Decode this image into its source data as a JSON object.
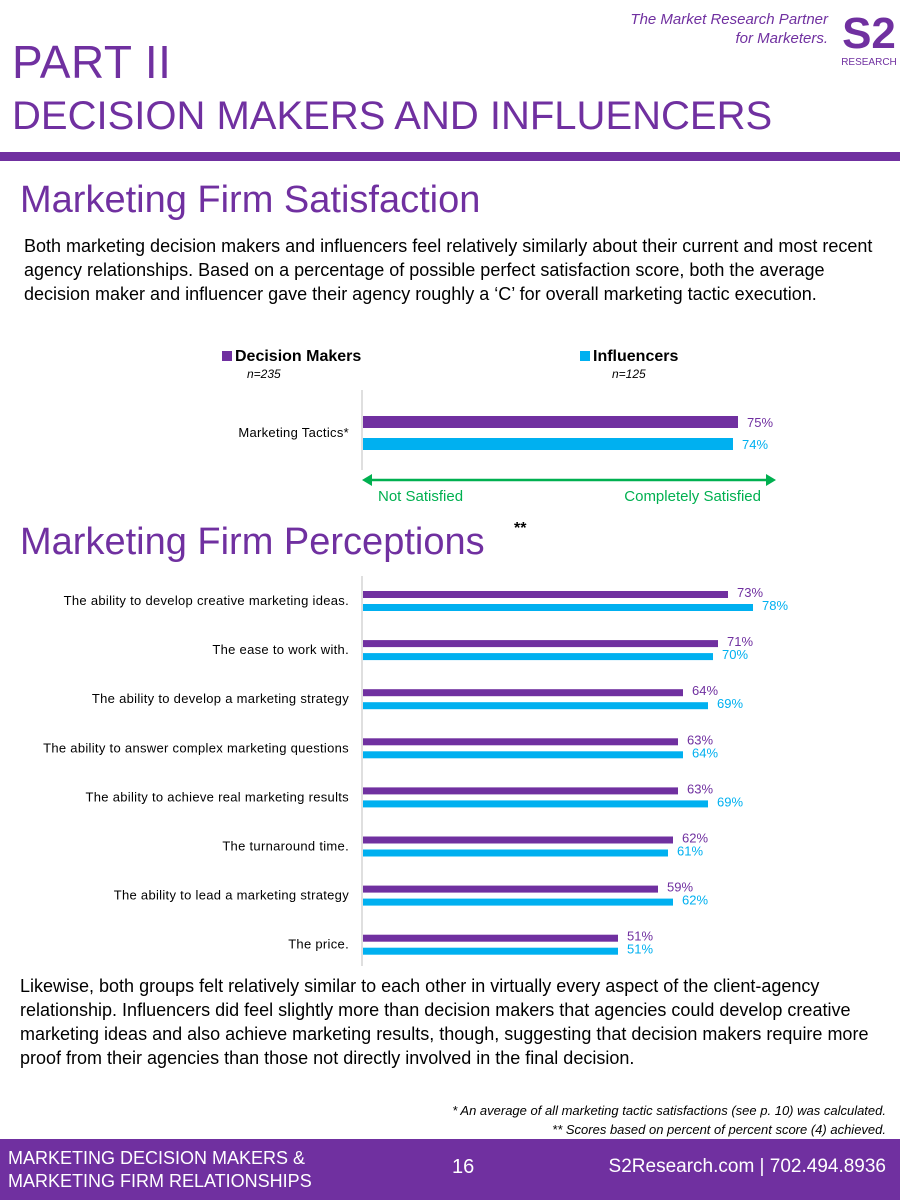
{
  "header": {
    "tagline_line1": "The Market Research Partner",
    "tagline_line2": "for Marketers.",
    "logo_text": "S2",
    "logo_sub": "RESEARCH",
    "part_title": "PART II",
    "part_subtitle": "DECISION MAKERS AND INFLUENCERS",
    "accent_color": "#7030a0"
  },
  "section1": {
    "title": "Marketing Firm Satisfaction",
    "paragraph": "Both marketing decision makers and influencers feel relatively similarly about their current and most recent agency relationships. Based on a percentage of possible perfect satisfaction score, both the average decision maker and influencer gave their agency roughly a ‘C’ for overall marketing tactic execution."
  },
  "legend": {
    "decision_makers": {
      "label": "Decision Makers",
      "n": "n=235",
      "color": "#7030a0"
    },
    "influencers": {
      "label": "Influencers",
      "n": "n=125",
      "color": "#00b0f0"
    }
  },
  "scale": {
    "low_label": "Not Satisfied",
    "high_label": "Completely Satisfied",
    "color": "#00b050"
  },
  "section2": {
    "title": "Marketing Firm Perceptions",
    "superscript": "**",
    "paragraph": "Likewise, both groups felt relatively similar to each other in virtually every aspect of the client-agency relationship. Influencers did feel slightly more than decision makers that agencies could develop creative marketing ideas and also achieve marketing results, though, suggesting that decision makers require more proof from their agencies than those not directly involved in the final decision."
  },
  "chart_data": [
    {
      "type": "bar",
      "orientation": "horizontal",
      "categories": [
        "Marketing Tactics*"
      ],
      "series": [
        {
          "name": "Decision Makers",
          "values": [
            75
          ],
          "labels": [
            "75%"
          ]
        },
        {
          "name": "Influencers",
          "values": [
            74
          ],
          "labels": [
            "74%"
          ]
        }
      ],
      "xlim": [
        0,
        100
      ]
    },
    {
      "type": "bar",
      "orientation": "horizontal",
      "categories": [
        "The ability to develop creative marketing ideas.",
        "The ease to work with.",
        "The ability to develop a marketing strategy",
        "The ability to answer complex marketing questions",
        "The ability to achieve real marketing results",
        "The turnaround time.",
        "The ability to lead a marketing strategy",
        "The price."
      ],
      "series": [
        {
          "name": "Decision Makers",
          "values": [
            73,
            71,
            64,
            63,
            63,
            62,
            59,
            51
          ],
          "labels": [
            "73%",
            "71%",
            "64%",
            "63%",
            "63%",
            "62%",
            "59%",
            "51%"
          ]
        },
        {
          "name": "Influencers",
          "values": [
            78,
            70,
            69,
            64,
            69,
            61,
            62,
            51
          ],
          "labels": [
            "78%",
            "70%",
            "69%",
            "64%",
            "69%",
            "61%",
            "62%",
            "51%"
          ]
        }
      ],
      "xlim": [
        0,
        100
      ]
    }
  ],
  "footnotes": {
    "note1": "* An average of all marketing tactic satisfactions (see p. 10) was calculated.",
    "note2": "** Scores based on percent of percent score (4) achieved."
  },
  "footer": {
    "line1": "MARKETING DECISION MAKERS &",
    "line2": "MARKETING FIRM RELATIONSHIPS",
    "page_number": "16",
    "contact": "S2Research.com | 702.494.8936"
  }
}
